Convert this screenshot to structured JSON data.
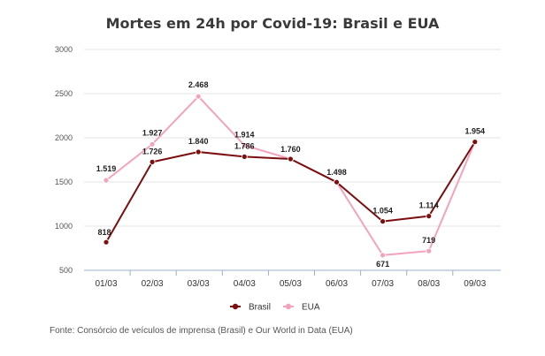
{
  "chart_data": {
    "type": "line",
    "title": "Mortes em 24h por Covid-19: Brasil e EUA",
    "xlabel": "",
    "ylabel": "",
    "categories": [
      "01/03",
      "02/03",
      "03/03",
      "04/03",
      "05/03",
      "06/03",
      "07/03",
      "08/03",
      "09/03"
    ],
    "ylim": [
      500,
      3000
    ],
    "yticks": [
      500,
      1000,
      1500,
      2000,
      2500,
      3000
    ],
    "grid": true,
    "legend_position": "bottom-center",
    "series": [
      {
        "name": "Brasil",
        "color": "#7b0e0e",
        "values": [
          818,
          1726,
          1840,
          1786,
          1760,
          1498,
          1054,
          1114,
          1954
        ],
        "labels": [
          "818",
          "1.726",
          "1.840",
          "1.786",
          "1.760",
          "1.498",
          "1.054",
          "1.114",
          "1.954"
        ]
      },
      {
        "name": "EUA",
        "color": "#f4a3bd",
        "values": [
          1519,
          1927,
          2468,
          1914,
          1760,
          1498,
          671,
          719,
          1954
        ],
        "labels": [
          "1.519",
          "1.927",
          "2.468",
          "1.914",
          "",
          "",
          "671",
          "719",
          ""
        ]
      }
    ]
  },
  "source_note": "Fonte: Consórcio de veículos de imprensa (Brasil) e Our World in Data (EUA)"
}
